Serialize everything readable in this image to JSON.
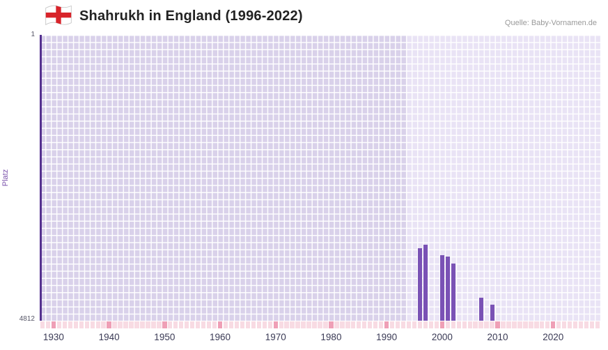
{
  "header": {
    "title": "Shahrukh in England (1996-2022)",
    "source": "Quelle: Baby-Vornamen.de",
    "flag_icon": "england-flag-icon"
  },
  "chart_data": {
    "type": "bar",
    "title": "Shahrukh in England (1996-2022)",
    "xlabel": "",
    "ylabel": "Platz",
    "y_ticks": [
      "1",
      "4812"
    ],
    "y_range": [
      1,
      4812
    ],
    "y_inverted": true,
    "x_range": [
      1928,
      2029
    ],
    "x_ticks": [
      1930,
      1940,
      1950,
      1960,
      1970,
      1980,
      1990,
      2000,
      2010,
      2020
    ],
    "highlight_range": [
      1994,
      2029
    ],
    "grid": true,
    "legend": "none",
    "series": [
      {
        "name": "Platz",
        "points": [
          {
            "year": 1996,
            "rank": 3590
          },
          {
            "year": 1997,
            "rank": 3535
          },
          {
            "year": 2000,
            "rank": 3705
          },
          {
            "year": 2001,
            "rank": 3735
          },
          {
            "year": 2002,
            "rank": 3850
          },
          {
            "year": 2007,
            "rank": 4425
          },
          {
            "year": 2009,
            "rank": 4545
          }
        ]
      }
    ],
    "colors": {
      "bar": "#7a52b5",
      "plot_bg": "#d9d1ea",
      "highlight_bg": "#e9e3f5",
      "grid_line": "rgba(255,255,255,0.95)",
      "axis_line": "#54308f",
      "flag_cross": "#d8232a"
    }
  },
  "strip": {
    "start_year": 1928,
    "end_year": 2028,
    "base_color": "#f8dbe3",
    "accent_color": "#ef9fb6",
    "accent_every": 10,
    "accent_anchor_year": 1930
  }
}
